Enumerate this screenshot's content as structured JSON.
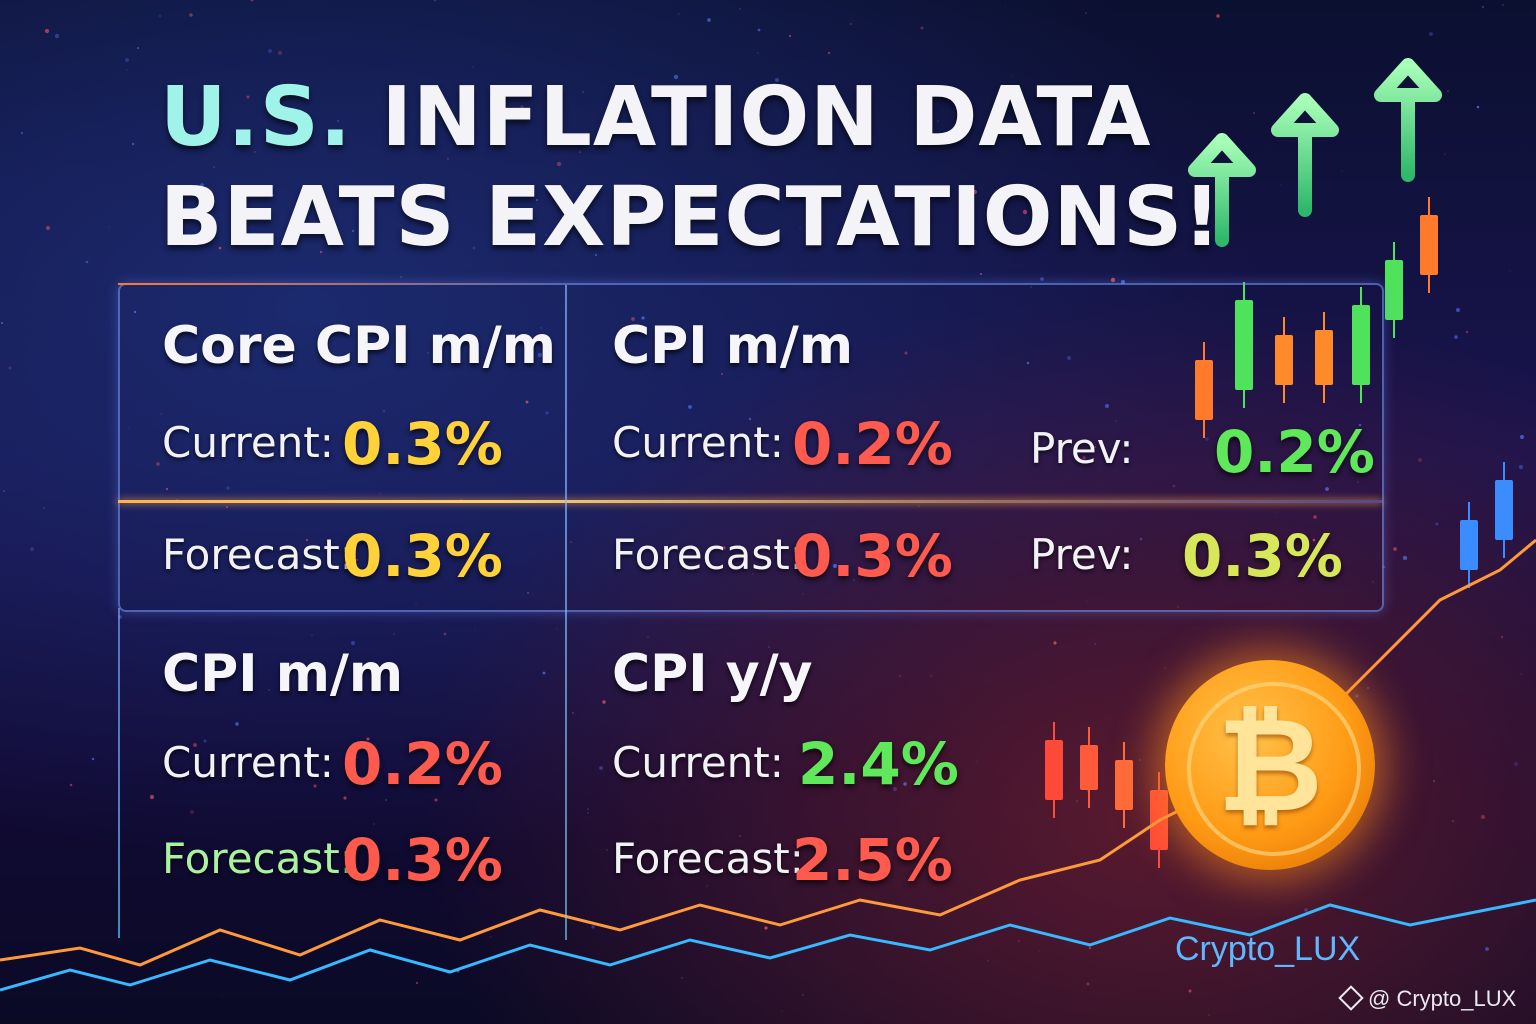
{
  "title": {
    "line1_part1": "U.S.",
    "line1_part2": " INFLATION DATA",
    "line2": "BEATS EXPECTATIONS!"
  },
  "panels": {
    "core_cpi_mm": {
      "header": "Core CPI m/m",
      "current_label": "Current:",
      "current_value": "0.3%",
      "forecast_label": "Forecast:",
      "forecast_value": "0.3%"
    },
    "cpi_mm_top": {
      "header": "CPI m/m",
      "current_label": "Current:",
      "current_value": "0.2%",
      "forecast_label": "Forecast:",
      "forecast_value": "0.3%",
      "prev_label_1": "Prev:",
      "prev_value_1": "0.2%",
      "prev_label_2": "Prev:",
      "prev_value_2": "0.3%"
    },
    "cpi_mm_bottom": {
      "header": "CPI m/m",
      "current_label": "Current:",
      "current_value": "0.2%",
      "forecast_label": "Forecast:",
      "forecast_value": "0.3%"
    },
    "cpi_yy": {
      "header": "CPI y/y",
      "current_label": "Current:",
      "current_value": "2.4%",
      "forecast_label": "Forecast:",
      "forecast_value": "2.5%"
    }
  },
  "brand": "Crypto_LUX",
  "watermark": "@ Crypto_LUX",
  "icons": {
    "coin": "bitcoin-coin-icon",
    "coin_glyph": "₿",
    "arrows": "up-arrow-icon",
    "watermark": "binance-diamond-icon"
  },
  "colors": {
    "yellow": "#ffd23a",
    "red": "#ff5a4e",
    "green": "#5fe85a",
    "lime": "#d8e75a",
    "brand": "#5fb8ff"
  }
}
